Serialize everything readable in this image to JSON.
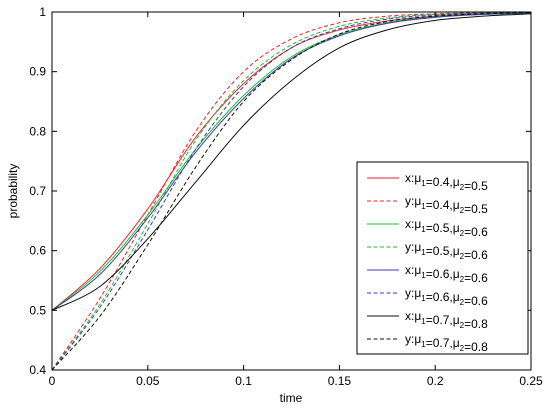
{
  "chart_data": {
    "type": "line",
    "title": "",
    "xlabel": "time",
    "ylabel": "probability",
    "xlim": [
      0,
      0.25
    ],
    "ylim": [
      0.4,
      1
    ],
    "xticks": [
      0,
      0.05,
      0.1,
      0.15,
      0.2,
      0.25
    ],
    "xtick_labels": [
      "0",
      "0.05",
      "0.1",
      "0.15",
      "0.2",
      "0.25"
    ],
    "yticks": [
      0.4,
      0.5,
      0.6,
      0.7,
      0.8,
      0.9,
      1
    ],
    "ytick_labels": [
      "0.4",
      "0.5",
      "0.6",
      "0.7",
      "0.8",
      "0.9",
      "1"
    ],
    "grid": false,
    "legend_position": "bottom-right",
    "x": [
      0,
      0.025,
      0.05,
      0.075,
      0.1,
      0.125,
      0.15,
      0.175,
      0.2,
      0.225,
      0.25
    ],
    "series": [
      {
        "var": "x",
        "mu1": "0.4",
        "mu2": "0.5",
        "color": "#e8262b",
        "dash": "solid",
        "values": [
          0.5,
          0.57,
          0.67,
          0.79,
          0.88,
          0.94,
          0.97,
          0.985,
          0.993,
          0.997,
          0.998
        ]
      },
      {
        "var": "y",
        "mu1": "0.4",
        "mu2": "0.5",
        "color": "#e8262b",
        "dash": "dashed",
        "values": [
          0.4,
          0.52,
          0.66,
          0.8,
          0.9,
          0.955,
          0.982,
          0.993,
          0.997,
          0.999,
          0.999
        ]
      },
      {
        "var": "x",
        "mu1": "0.5",
        "mu2": "0.6",
        "color": "#1bbf2f",
        "dash": "solid",
        "values": [
          0.5,
          0.565,
          0.66,
          0.77,
          0.86,
          0.925,
          0.962,
          0.982,
          0.992,
          0.996,
          0.998
        ]
      },
      {
        "var": "y",
        "mu1": "0.5",
        "mu2": "0.6",
        "color": "#1bbf2f",
        "dash": "dashed",
        "values": [
          0.4,
          0.51,
          0.645,
          0.785,
          0.885,
          0.945,
          0.976,
          0.99,
          0.996,
          0.998,
          0.999
        ]
      },
      {
        "var": "x",
        "mu1": "0.6",
        "mu2": "0.6",
        "color": "#3c3cb4",
        "dash": "solid",
        "values": [
          0.5,
          0.56,
          0.655,
          0.765,
          0.855,
          0.922,
          0.96,
          0.981,
          0.991,
          0.996,
          0.998
        ]
      },
      {
        "var": "y",
        "mu1": "0.6",
        "mu2": "0.6",
        "color": "#3c3cb4",
        "dash": "dashed",
        "values": [
          0.4,
          0.505,
          0.635,
          0.77,
          0.875,
          0.94,
          0.972,
          0.988,
          0.995,
          0.998,
          0.999
        ]
      },
      {
        "var": "x",
        "mu1": "0.7",
        "mu2": "0.8",
        "color": "#111111",
        "dash": "solid",
        "values": [
          0.5,
          0.54,
          0.62,
          0.715,
          0.81,
          0.885,
          0.94,
          0.97,
          0.986,
          0.993,
          0.997
        ]
      },
      {
        "var": "y",
        "mu1": "0.7",
        "mu2": "0.8",
        "color": "#111111",
        "dash": "dashed",
        "values": [
          0.4,
          0.49,
          0.61,
          0.74,
          0.85,
          0.92,
          0.963,
          0.984,
          0.993,
          0.997,
          0.999
        ]
      }
    ]
  }
}
